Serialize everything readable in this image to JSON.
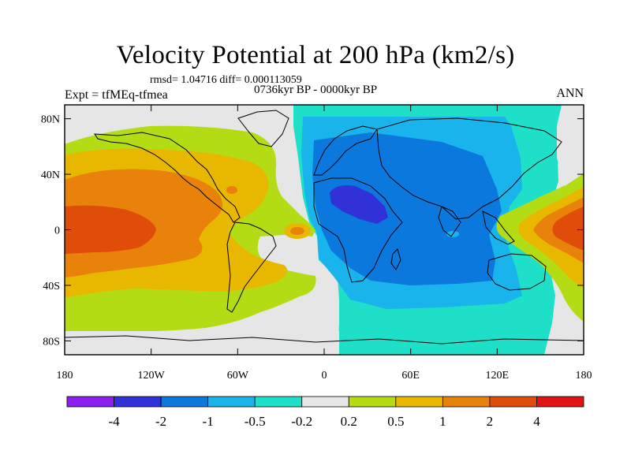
{
  "chart_data": {
    "type": "heatmap",
    "title": "Velocity Potential at 200 hPa (km2/s)",
    "stats_line": "rmsd= 1.04716 diff= 0.000113059",
    "period_line": "0736kyr BP - 0000kyr BP",
    "left_string": "Expt = tfMEq-tfmea",
    "right_string": "ANN",
    "x_ticks": [
      "180",
      "120W",
      "60W",
      "0",
      "60E",
      "120E",
      "180"
    ],
    "x_tick_values": [
      -180,
      -120,
      -60,
      0,
      60,
      120,
      180
    ],
    "y_ticks": [
      "80N",
      "40N",
      "0",
      "40S",
      "80S"
    ],
    "y_tick_values": [
      80,
      40,
      0,
      -40,
      -80
    ],
    "xlim": [
      -180,
      180
    ],
    "ylim": [
      -90,
      90
    ],
    "colorbar": {
      "labels": [
        "-4",
        "-2",
        "-1",
        "-0.5",
        "-0.2",
        "0.2",
        "0.5",
        "1",
        "2",
        "4"
      ],
      "colors": [
        "#8c1ff0",
        "#3131d8",
        "#0a78dc",
        "#19b4ec",
        "#1ee0c8",
        "#e6e6e6",
        "#b4dc14",
        "#e8b800",
        "#e8820a",
        "#e04c0a",
        "#e01414"
      ]
    },
    "features": [
      {
        "name": "pacific-positive",
        "value": 4
      },
      {
        "name": "africa-arabia-negative",
        "value": -2
      },
      {
        "name": "indian-ocean-negative",
        "value": -1
      },
      {
        "name": "west-pacific-positive",
        "value": 4
      }
    ]
  }
}
